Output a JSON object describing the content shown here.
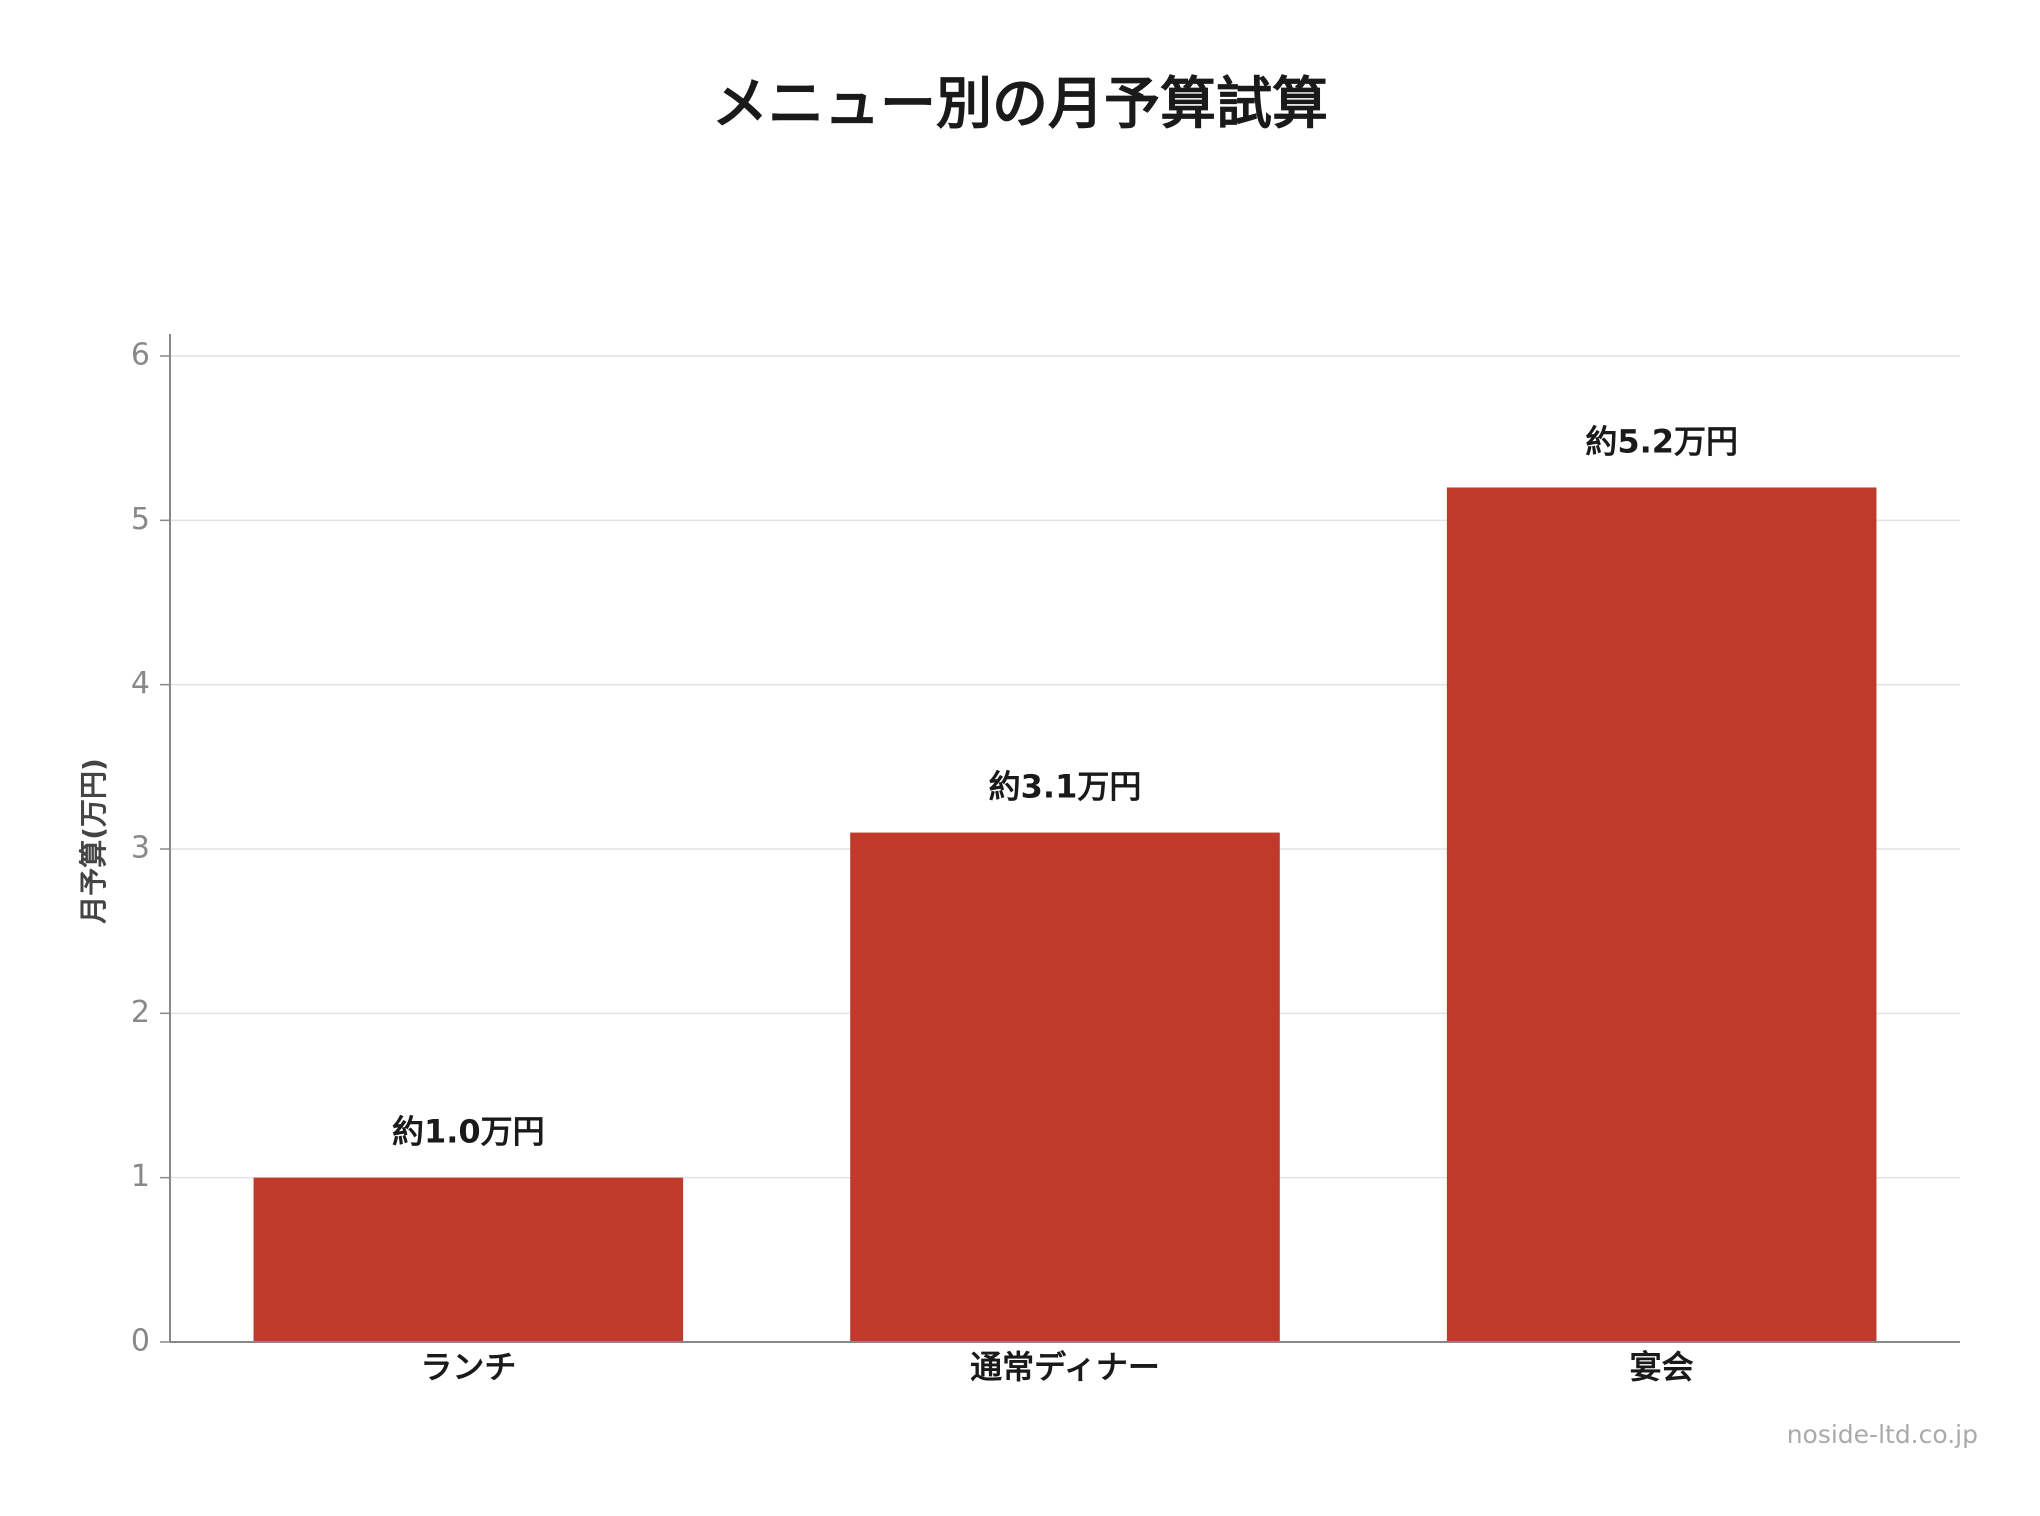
{
  "chart_data": {
    "type": "bar",
    "title": "メニュー別の月予算試算",
    "y_label": "月予算(万円)",
    "categories": [
      "ランチ",
      "通常ディナー",
      "宴会"
    ],
    "values": [
      1.0,
      3.1,
      5.2
    ],
    "value_labels": [
      "約1.0万円",
      "約3.1万円",
      "約5.2万円"
    ],
    "color": "#bf3a2b",
    "ylim": [
      0,
      6
    ],
    "yticks": [
      0,
      1,
      2,
      3,
      4,
      5,
      6
    ],
    "grid": true,
    "watermark": "noside-ltd.co.jp"
  }
}
